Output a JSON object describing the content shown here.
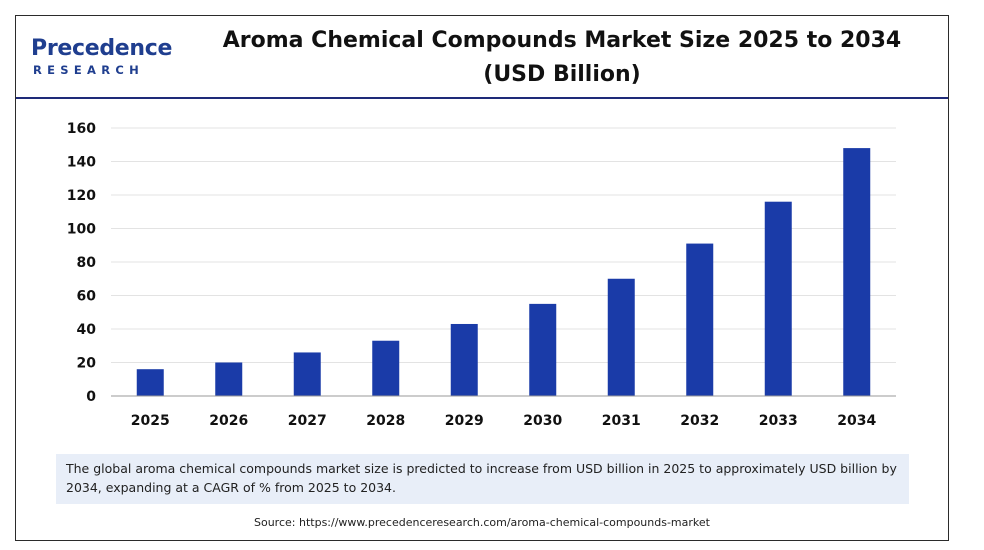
{
  "logo": {
    "name": "Precedence",
    "tagline": "RESEARCH"
  },
  "title": "Aroma Chemical Compounds Market Size 2025 to 2034 (USD Billion)",
  "note": "The global aroma chemical compounds market size is predicted to increase from USD billion in 2025 to approximately USD billion by 2034, expanding at a CAGR of % from 2025 to 2034.",
  "source": "Source: https://www.precedenceresearch.com/aroma-chemical-compounds-market",
  "chart_data": {
    "type": "bar",
    "categories": [
      "2025",
      "2026",
      "2027",
      "2028",
      "2029",
      "2030",
      "2031",
      "2032",
      "2033",
      "2034"
    ],
    "values": [
      16,
      20,
      26,
      33,
      43,
      55,
      70,
      91,
      116,
      148
    ],
    "ylim": [
      0,
      160
    ],
    "yticks": [
      0,
      20,
      40,
      60,
      80,
      100,
      120,
      140,
      160
    ],
    "xlabel": "",
    "ylabel": "",
    "grid": true,
    "bar_color": "#1a3ba8"
  }
}
